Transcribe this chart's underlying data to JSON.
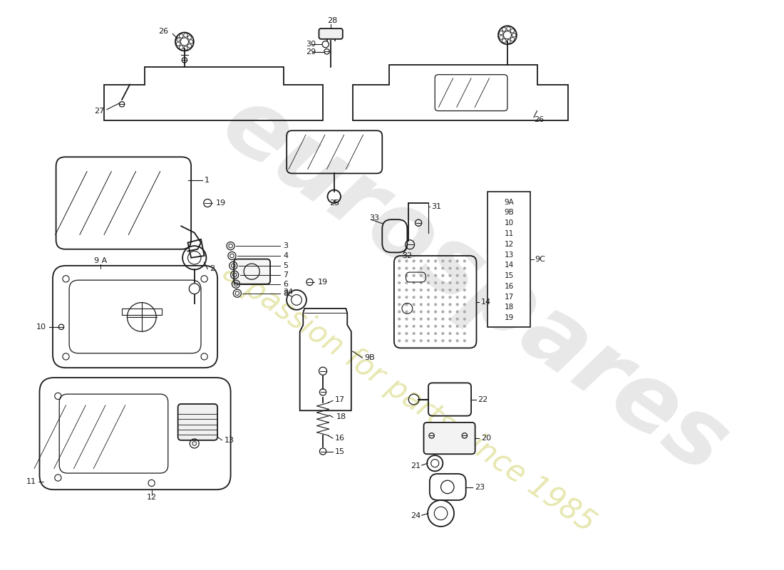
{
  "bg": "#ffffff",
  "lc": "#1a1a1a",
  "wm1": "eurospares",
  "wm2": "a passion for parts since 1985",
  "figw": 11.0,
  "figh": 8.0,
  "dpi": 100,
  "xlim": [
    0,
    1100
  ],
  "ylim": [
    0,
    800
  ]
}
